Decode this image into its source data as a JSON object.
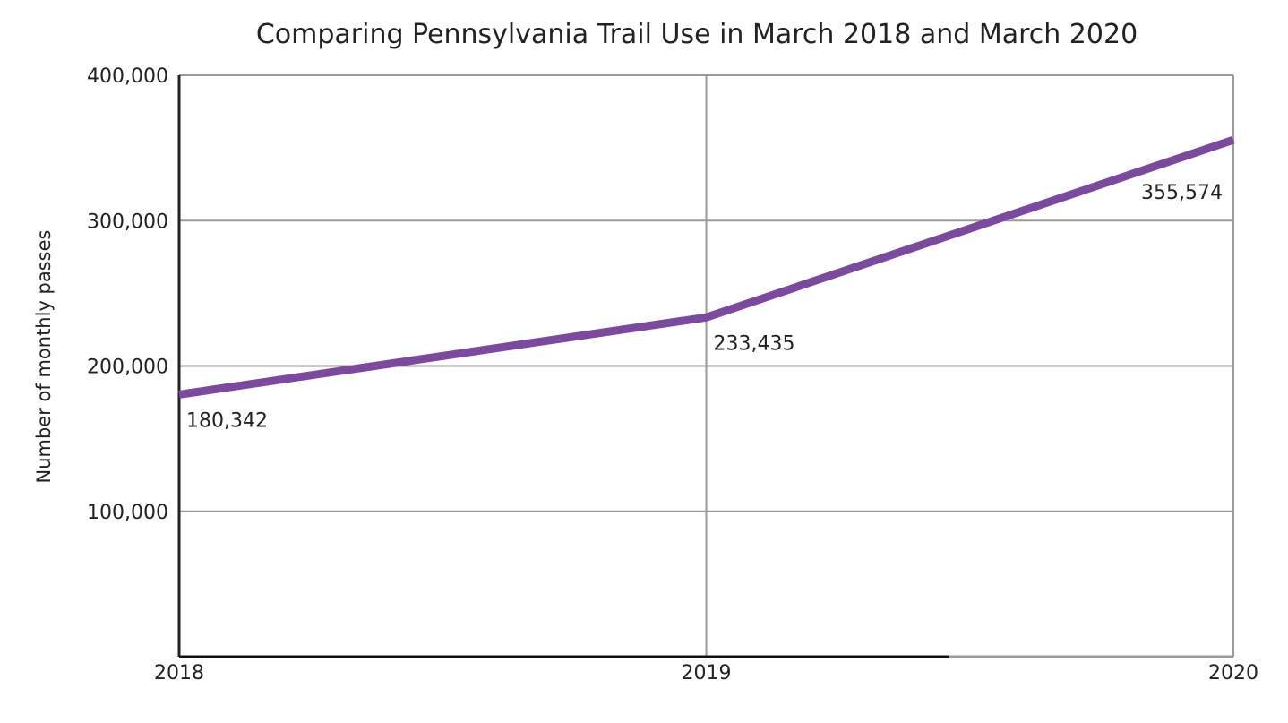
{
  "chart_data": {
    "type": "line",
    "title": "Comparing Pennsylvania Trail Use in March 2018 and March 2020",
    "xlabel": "",
    "ylabel": "Number of monthly passes",
    "categories": [
      "2018",
      "2019",
      "2020"
    ],
    "series": [
      {
        "values": [
          180342,
          233435,
          355574
        ],
        "data_labels": [
          "180,342",
          "233,435",
          "355,574"
        ],
        "color": "#7b4a9e"
      }
    ],
    "ylim": [
      0,
      400000
    ],
    "yticks": [
      100000,
      200000,
      300000,
      400000
    ],
    "ytick_labels": [
      "100,000",
      "200,000",
      "300,000",
      "400,000"
    ],
    "grid": true,
    "legend": "none"
  }
}
